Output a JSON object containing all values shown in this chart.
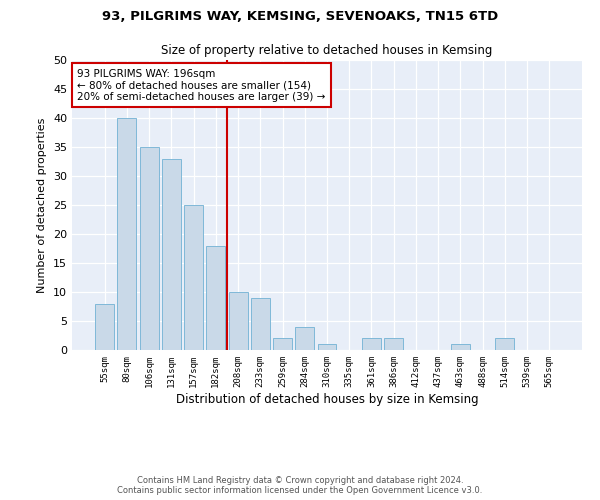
{
  "title1": "93, PILGRIMS WAY, KEMSING, SEVENOAKS, TN15 6TD",
  "title2": "Size of property relative to detached houses in Kemsing",
  "xlabel": "Distribution of detached houses by size in Kemsing",
  "ylabel": "Number of detached properties",
  "bar_color": "#c9d9e8",
  "bar_edge_color": "#7fb8d8",
  "categories": [
    "55sqm",
    "80sqm",
    "106sqm",
    "131sqm",
    "157sqm",
    "182sqm",
    "208sqm",
    "233sqm",
    "259sqm",
    "284sqm",
    "310sqm",
    "335sqm",
    "361sqm",
    "386sqm",
    "412sqm",
    "437sqm",
    "463sqm",
    "488sqm",
    "514sqm",
    "539sqm",
    "565sqm"
  ],
  "values": [
    8,
    40,
    35,
    33,
    25,
    18,
    10,
    9,
    2,
    4,
    1,
    0,
    2,
    2,
    0,
    0,
    1,
    0,
    2,
    0,
    0
  ],
  "vline_x": 5.5,
  "vline_color": "#cc0000",
  "annotation_text": "93 PILGRIMS WAY: 196sqm\n← 80% of detached houses are smaller (154)\n20% of semi-detached houses are larger (39) →",
  "annotation_box_color": "#ffffff",
  "annotation_box_edgecolor": "#cc0000",
  "footer1": "Contains HM Land Registry data © Crown copyright and database right 2024.",
  "footer2": "Contains public sector information licensed under the Open Government Licence v3.0.",
  "ylim": [
    0,
    50
  ],
  "background_color": "#e8eef8"
}
